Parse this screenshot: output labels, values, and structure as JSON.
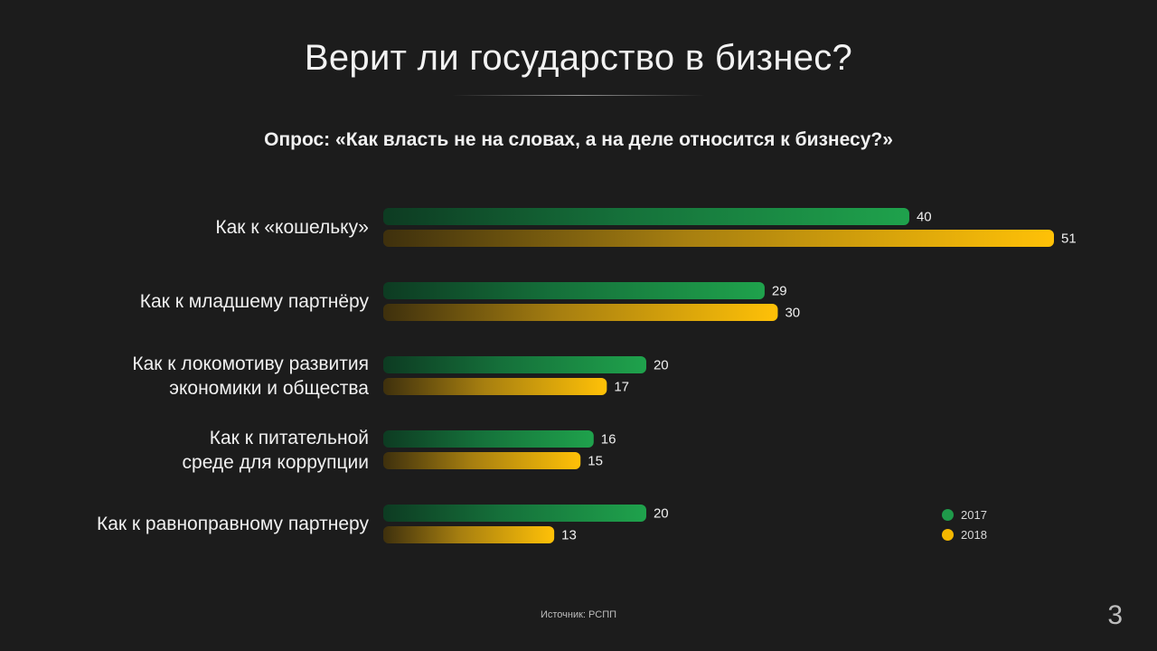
{
  "page": {
    "page_number": "3",
    "source": "Источник: РСПП"
  },
  "chart_data": {
    "type": "bar",
    "orientation": "horizontal",
    "title": "Верит ли государство в бизнес?",
    "subtitle": "Опрос: «Как власть не на словах, а на деле относится к бизнесу?»",
    "categories": [
      "Как к «кошельку»",
      "Как к младшему партнёру",
      "Как к локомотиву развития экономики и общества",
      "Как к питательной среде для коррупции",
      "Как к равноправному партнеру"
    ],
    "category_lines": [
      [
        "Как к «кошельку»"
      ],
      [
        "Как к младшему партнёру"
      ],
      [
        "Как к локомотиву развития",
        "экономики и общества"
      ],
      [
        "Как к питательной",
        "среде для коррупции"
      ],
      [
        "Как к равноправному партнеру"
      ]
    ],
    "series": [
      {
        "name": "2017",
        "values": [
          40,
          29,
          20,
          16,
          20
        ],
        "color": "#1f9a4a"
      },
      {
        "name": "2018",
        "values": [
          51,
          30,
          17,
          15,
          13
        ],
        "color": "#f5b800"
      }
    ],
    "data_labels": true,
    "legend": "bottom-right",
    "grid": false,
    "xlim": [
      0,
      51
    ]
  }
}
